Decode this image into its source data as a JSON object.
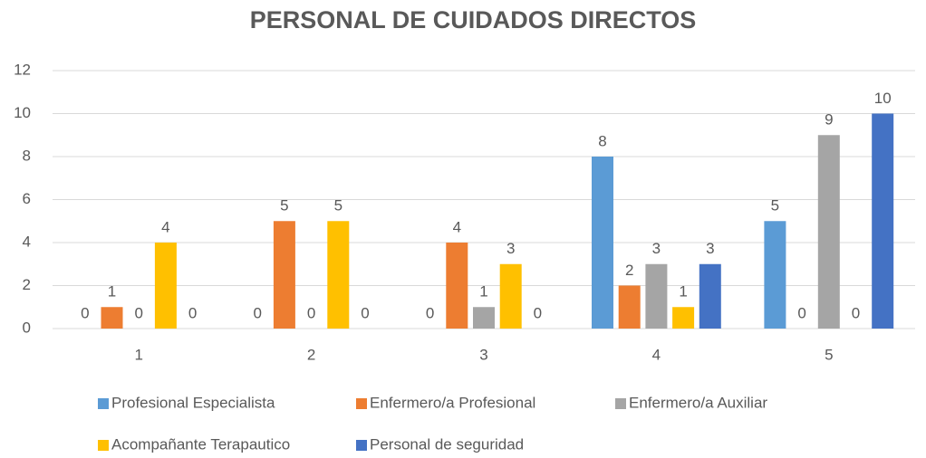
{
  "chart_data": {
    "type": "bar",
    "title": "PERSONAL DE CUIDADOS DIRECTOS",
    "categories": [
      "1",
      "2",
      "3",
      "4",
      "5"
    ],
    "series": [
      {
        "name": "Profesional Especialista",
        "color": "#5b9bd5",
        "values": [
          0,
          0,
          0,
          8,
          5
        ]
      },
      {
        "name": "Enfermero/a Profesional",
        "color": "#ed7d31",
        "values": [
          1,
          5,
          4,
          2,
          0
        ]
      },
      {
        "name": "Enfermero/a Auxiliar",
        "color": "#a5a5a5",
        "values": [
          0,
          0,
          1,
          3,
          9
        ]
      },
      {
        "name": "Acompañante Terapautico",
        "color": "#ffc000",
        "values": [
          4,
          5,
          3,
          1,
          0
        ]
      },
      {
        "name": "Personal de seguridad",
        "color": "#4472c4",
        "values": [
          0,
          0,
          0,
          3,
          10
        ]
      }
    ],
    "ylim": [
      0,
      12
    ],
    "yticks": [
      0,
      2,
      4,
      6,
      8,
      10,
      12
    ],
    "grid": true,
    "legend": "bottom"
  }
}
